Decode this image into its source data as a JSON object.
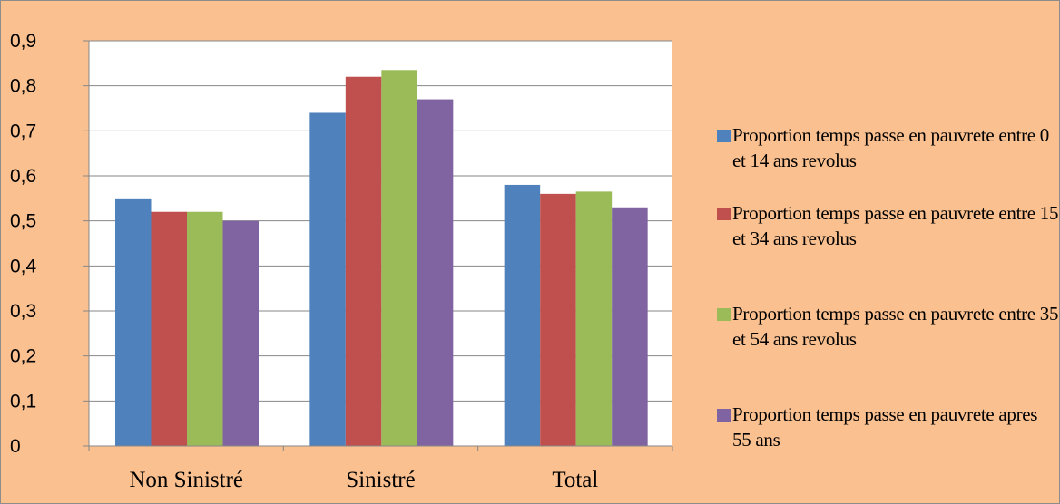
{
  "chart_data": {
    "type": "bar",
    "categories": [
      "Non Sinistré",
      "Sinistré",
      "Total"
    ],
    "series": [
      {
        "name": "Proportion temps passe en pauvrete entre 0 et 14 ans revolus",
        "color": "#4f81bd",
        "values": [
          0.55,
          0.74,
          0.58
        ]
      },
      {
        "name": "Proportion temps passe en pauvrete entre 15 et 34 ans revolus",
        "color": "#c0504d",
        "values": [
          0.52,
          0.82,
          0.56
        ]
      },
      {
        "name": "Proportion temps passe en pauvrete entre 35 et 54 ans revolus",
        "color": "#9bbb59",
        "values": [
          0.52,
          0.835,
          0.565
        ]
      },
      {
        "name": "Proportion temps passe en pauvrete apres 55 ans",
        "color": "#8064a2",
        "values": [
          0.5,
          0.77,
          0.53
        ]
      }
    ],
    "y_ticks": [
      "0",
      "0,1",
      "0,2",
      "0,3",
      "0,4",
      "0,5",
      "0,6",
      "0,7",
      "0,8",
      "0,9"
    ],
    "ylim": [
      0,
      0.9
    ],
    "grid": true,
    "legend_position": "right",
    "plot_background": "#ffffff",
    "chart_background": "#fac090"
  }
}
